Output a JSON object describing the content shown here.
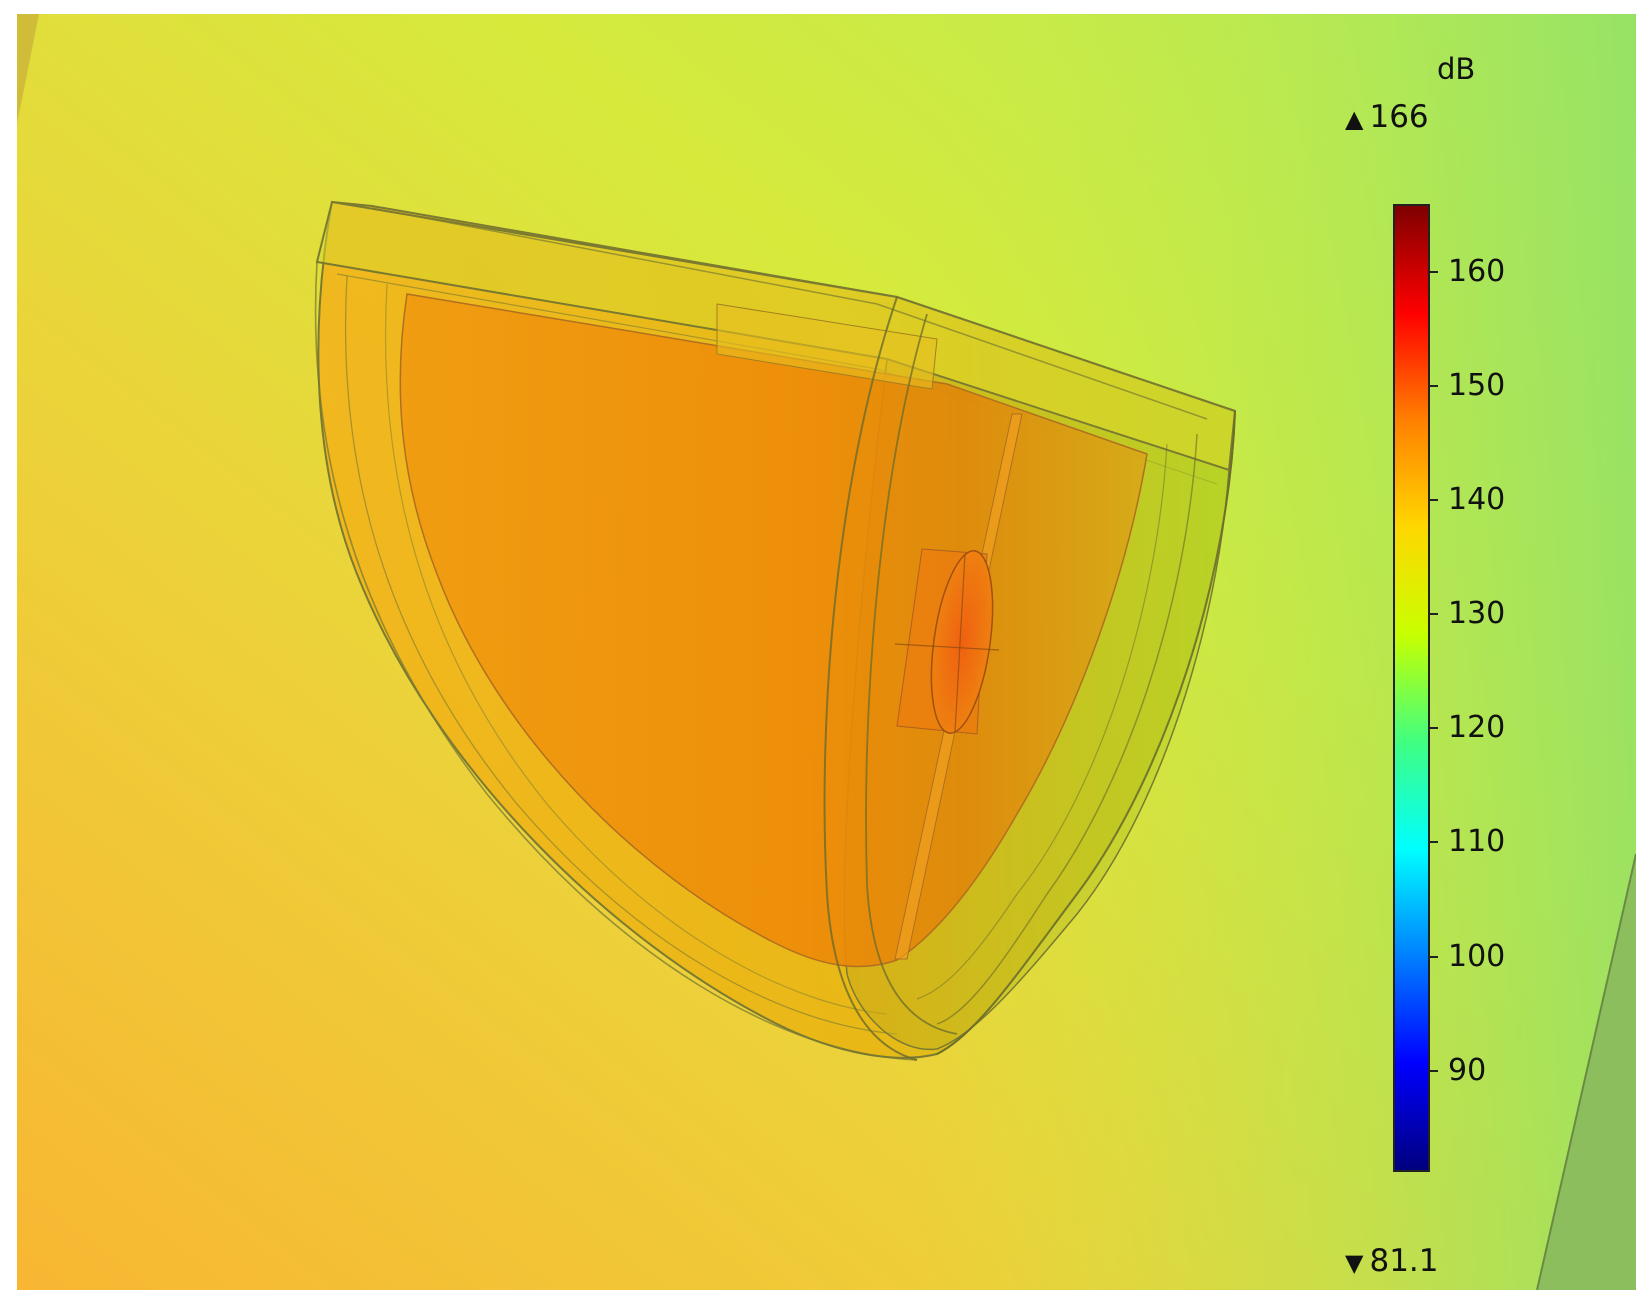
{
  "colorbar": {
    "unit": "dB",
    "max_label": "166",
    "min_label": "81.1",
    "max_value": 166,
    "min_value": 81.1,
    "ticks": [
      "90",
      "100",
      "110",
      "120",
      "130",
      "140",
      "150",
      "160"
    ],
    "tick_values": [
      90,
      100,
      110,
      120,
      130,
      140,
      150,
      160
    ],
    "colormap": [
      "#00007f",
      "#0000ff",
      "#0080ff",
      "#00ffff",
      "#40ff80",
      "#c8ff00",
      "#ffd700",
      "#ff8000",
      "#ff0000",
      "#7f0000"
    ]
  },
  "icons": {
    "max_marker": "triangle-up-icon",
    "min_marker": "triangle-down-icon"
  },
  "colors": {
    "field_warm": "#f7b432",
    "field_cool": "#a8e85a",
    "shell_fill": "#f0b400",
    "inner_fill": "#f08c00",
    "edge": "#6b6b2a"
  }
}
